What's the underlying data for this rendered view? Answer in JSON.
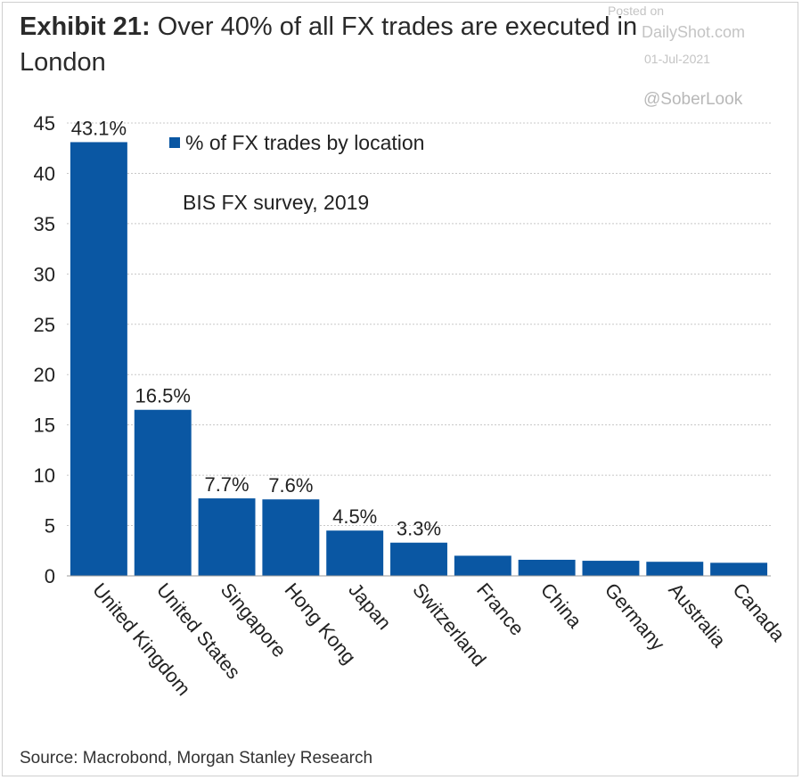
{
  "title": {
    "exhibit": "Exhibit 21:",
    "text": "Over 40% of all FX trades are executed in London"
  },
  "watermark": {
    "posted": "Posted on",
    "site": "DailyShot.com",
    "date": "01-Jul-2021",
    "handle": "@SoberLook"
  },
  "source": "Source: Macrobond, Morgan Stanley Research",
  "colors": {
    "bar": "#0a57a3",
    "grid": "#c8c8c8",
    "text": "#222222"
  },
  "chart_data": {
    "type": "bar",
    "categories": [
      "United Kingdom",
      "United States",
      "Singapore",
      "Hong Kong",
      "Japan",
      "Switzerland",
      "France",
      "China",
      "Germany",
      "Australia",
      "Canada"
    ],
    "series": [
      {
        "name": "% of FX trades by location",
        "values": [
          43.1,
          16.5,
          7.7,
          7.6,
          4.5,
          3.3,
          2.0,
          1.6,
          1.5,
          1.4,
          1.3
        ]
      }
    ],
    "data_labels": [
      "43.1%",
      "16.5%",
      "7.7%",
      "7.6%",
      "4.5%",
      "3.3%",
      "",
      "",
      "",
      "",
      ""
    ],
    "annotation": "BIS FX survey, 2019",
    "ylim": [
      0,
      45
    ],
    "yticks": [
      0,
      5,
      10,
      15,
      20,
      25,
      30,
      35,
      40,
      45
    ],
    "xlabel": "",
    "ylabel": "",
    "grid": true,
    "legend_position": "top"
  }
}
